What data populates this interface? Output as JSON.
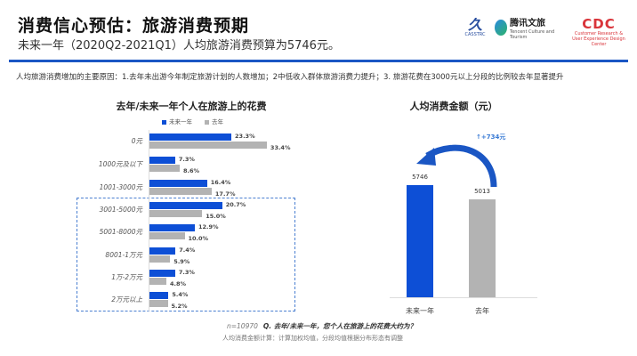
{
  "header": {
    "title": "消费信心预估：旅游消费预期",
    "subtitle": "未来一年（2020Q2-2021Q1）人均旅游消费预算为5746元。"
  },
  "logos": [
    {
      "name": "CASSTRC",
      "text": "CASSTRC"
    },
    {
      "name": "腾讯文旅",
      "text": "腾讯文旅",
      "sub": "Tencent Culture and Tourism"
    },
    {
      "name": "CDC",
      "text": "CDC",
      "sub": "Customer Research & User Experience Design Center"
    }
  ],
  "reason": "人均旅游消费增加的主要原因：1.去年未出游今年制定旅游计划的人数增加；2中低收入群体旅游消费力提升；3. 旅游花费在3000元以上分段的比例较去年显著提升",
  "colors": {
    "accent": "#1a56c4",
    "blue": "#0d4fd6",
    "gray": "#b3b3b3"
  },
  "chart_data": [
    {
      "type": "bar",
      "orientation": "horizontal",
      "title": "去年/未来一年个人在旅游上的花费",
      "legend_position": "top",
      "categories": [
        "0元",
        "1000元及以下",
        "1001-3000元",
        "3001-5000元",
        "5001-8000元",
        "8001-1万元",
        "1万-2万元",
        "2万元以上"
      ],
      "series": [
        {
          "name": "未来一年",
          "values": [
            23.3,
            7.3,
            16.4,
            20.7,
            12.9,
            7.4,
            7.3,
            5.4
          ],
          "labels": [
            "23.3%",
            "7.3%",
            "16.4%",
            "20.7%",
            "12.9%",
            "7.4%",
            "7.3%",
            "5.4%"
          ]
        },
        {
          "name": "去年",
          "values": [
            33.4,
            8.6,
            17.7,
            15.0,
            10.0,
            5.9,
            4.8,
            5.2
          ],
          "labels": [
            "33.4%",
            "8.6%",
            "17.7%",
            "15.0%",
            "10.0%",
            "5.9%",
            "4.8%",
            "5.2%"
          ]
        }
      ],
      "highlight": "3001-5000元 to 2万元以上"
    },
    {
      "type": "bar",
      "title": "人均消费金额（元）",
      "categories": [
        "未来一年",
        "去年"
      ],
      "values": [
        5746,
        5013
      ],
      "labels": [
        "5746",
        "5013"
      ],
      "annotation": "↑+734元"
    }
  ],
  "footnote": {
    "n": "n=10970",
    "question": "Q. 去年/未来一年，您个人在旅游上的花费大约为？",
    "note": "人均消费金额计算：计算加权均值，分段均值根据分布形态有调整"
  }
}
